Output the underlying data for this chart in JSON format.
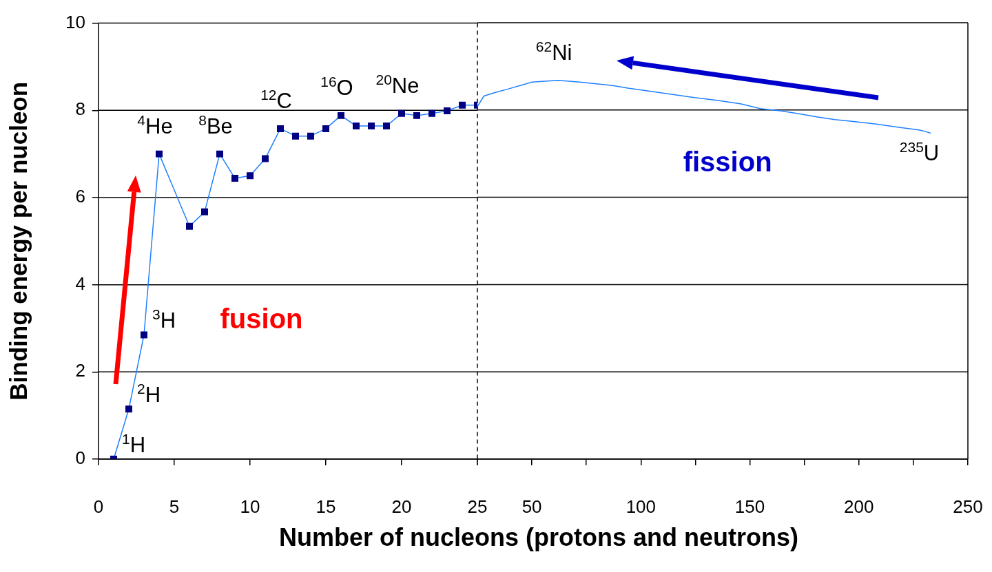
{
  "chart_data": [
    {
      "type": "line",
      "ylabel": "Binding energy per nucleon",
      "xlabel": "Number of nucleons (protons and neutrons)",
      "xlim": [
        0,
        25
      ],
      "xticks": [
        0,
        5,
        10,
        15,
        20,
        25
      ],
      "ylim": [
        0,
        10
      ],
      "yticks": [
        0,
        2,
        4,
        6,
        8,
        10
      ],
      "grid": "y",
      "legend": false,
      "marker": "square",
      "series": [
        {
          "color": "#000080",
          "x": [
            1,
            2,
            3,
            4,
            6,
            7,
            8,
            9,
            10,
            11,
            12,
            13,
            14,
            15,
            16,
            17,
            18,
            19,
            20,
            21,
            22,
            23,
            24,
            25
          ],
          "values": [
            0,
            1.15,
            2.85,
            7.0,
            5.34,
            5.67,
            7.0,
            6.44,
            6.5,
            6.89,
            7.58,
            7.41,
            7.41,
            7.58,
            7.88,
            7.64,
            7.64,
            7.64,
            7.93,
            7.88,
            7.93,
            7.99,
            8.12,
            8.12
          ]
        }
      ],
      "ref_lines": [
        {
          "axis": "x",
          "value": 25,
          "line_style": "dashed",
          "color": "#000000"
        }
      ],
      "annotations": [
        {
          "text": "$^{1}$H",
          "x": 1,
          "y": 0
        },
        {
          "text": "$^{2}$H",
          "x": 2,
          "y": 1.15
        },
        {
          "text": "$^{3}$H",
          "x": 3,
          "y": 2.85
        },
        {
          "text": "$^{4}$He",
          "x": 4,
          "y": 7.0
        },
        {
          "text": "$^{8}$Be",
          "x": 8,
          "y": 7.0
        },
        {
          "text": "$^{12}$C",
          "x": 12,
          "y": 7.58
        },
        {
          "text": "$^{16}$O",
          "x": 16,
          "y": 7.88
        },
        {
          "text": "$^{20}$Ne",
          "x": 20,
          "y": 7.93
        },
        "fusion"
      ]
    },
    {
      "type": "line",
      "xlim": [
        25,
        250
      ],
      "xticks": [
        {
          "value": 25,
          "label": null
        },
        50,
        {
          "value": 75,
          "label": null
        },
        100,
        {
          "value": 125,
          "label": null
        },
        150,
        {
          "value": 175,
          "label": null
        },
        200,
        {
          "value": 225,
          "label": null
        },
        250
      ],
      "ylim": [
        0,
        10
      ],
      "yticks": [
        0,
        2,
        4,
        6,
        8,
        10
      ],
      "tick_labels": "x",
      "grid": "y",
      "legend": false,
      "marker": "none",
      "series": [
        {
          "color": "#1f7fff",
          "x": [
            25,
            28,
            33,
            39,
            46,
            50,
            62,
            72,
            87,
            94,
            103,
            114,
            124,
            135,
            146,
            155,
            164,
            173,
            181,
            189,
            199,
            209,
            219,
            228,
            233
          ],
          "values": [
            8.08,
            8.32,
            8.4,
            8.48,
            8.58,
            8.64,
            8.68,
            8.64,
            8.56,
            8.5,
            8.44,
            8.36,
            8.29,
            8.22,
            8.14,
            8.03,
            7.98,
            7.91,
            7.84,
            7.78,
            7.73,
            7.67,
            7.6,
            7.54,
            7.47
          ]
        }
      ],
      "annotations": [
        {
          "text": "$^{62}$Ni",
          "x": 62,
          "y": 8.68
        },
        {
          "text": "$^{235}$U",
          "x": 233,
          "y": 7.47
        },
        "fission"
      ]
    }
  ]
}
